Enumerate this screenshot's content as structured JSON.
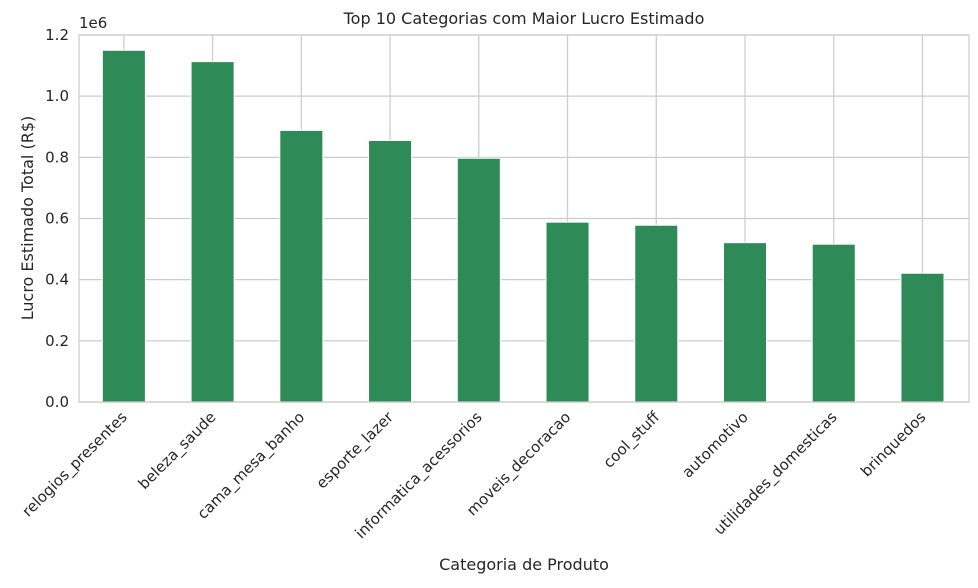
{
  "chart_data": {
    "type": "bar",
    "title": "Top 10 Categorias com Maior Lucro Estimado",
    "xlabel": "Categoria de Produto",
    "ylabel": "Lucro Estimado Total (R$)",
    "y_offset_label": "1e6",
    "categories": [
      "relogios_presentes",
      "beleza_saude",
      "cama_mesa_banho",
      "esporte_lazer",
      "informatica_acessorios",
      "moveis_decoracao",
      "cool_stuff",
      "automotivo",
      "utilidades_domesticas",
      "brinquedos"
    ],
    "values": [
      1150000,
      1113000,
      888000,
      855000,
      797000,
      588000,
      578000,
      521000,
      516000,
      421000
    ],
    "ylim": [
      0,
      1200000
    ],
    "yticks": [
      0,
      200000,
      400000,
      600000,
      800000,
      1000000,
      1200000
    ],
    "ytick_labels": [
      "0.0",
      "0.2",
      "0.4",
      "0.6",
      "0.8",
      "1.0",
      "1.2"
    ],
    "bar_color": "#2e8b57",
    "grid": true,
    "legend": "none"
  }
}
